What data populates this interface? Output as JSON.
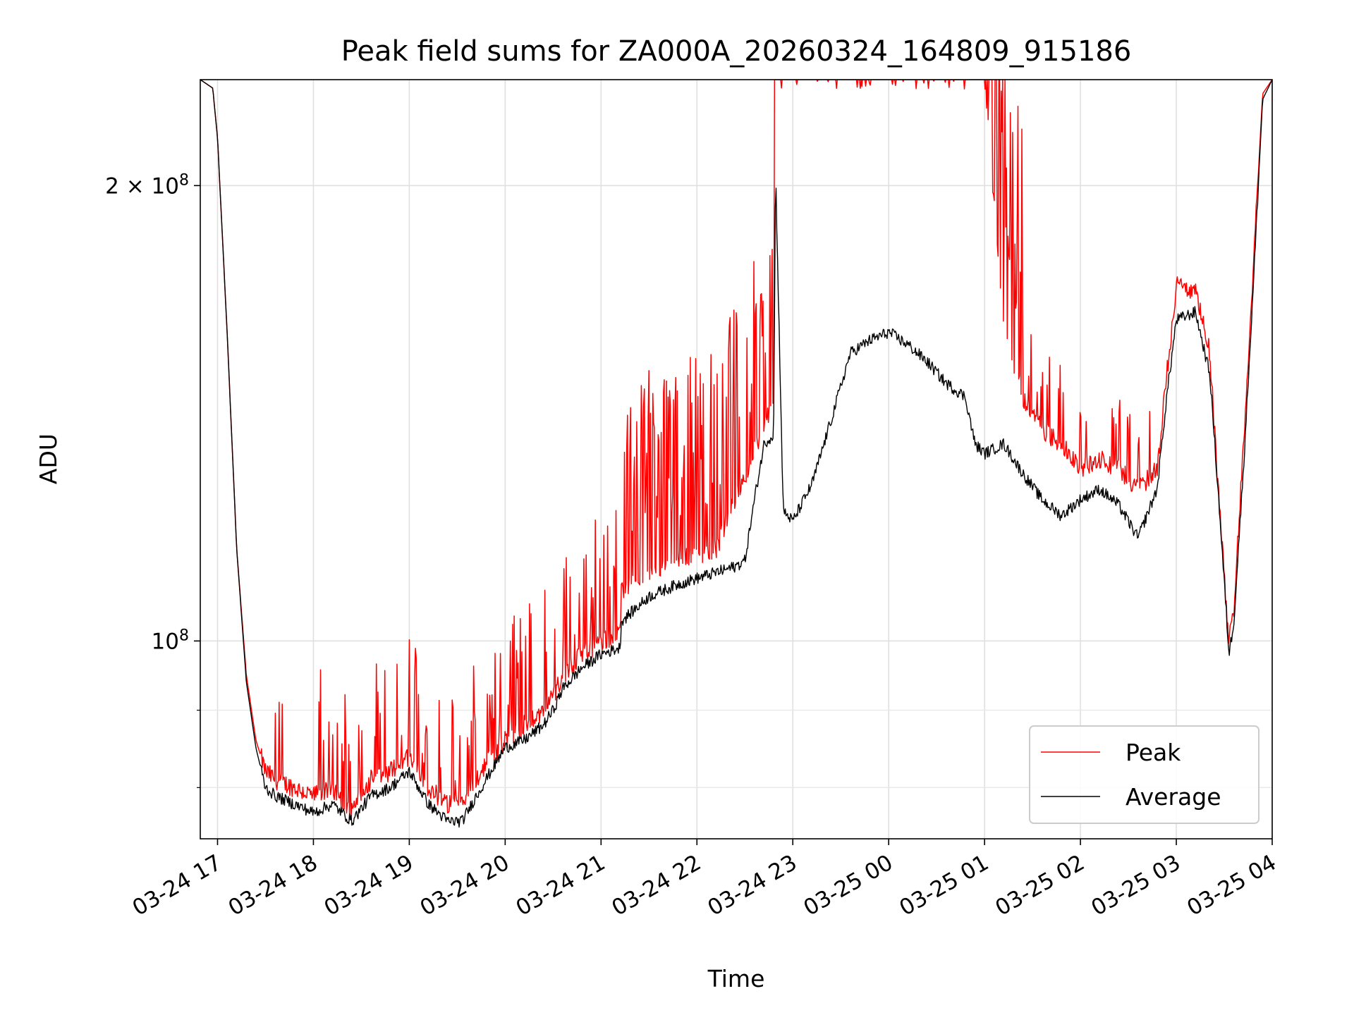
{
  "chart_data": {
    "type": "line",
    "title": "Peak field sums for ZA000A_20260324_164809_915186",
    "xlabel": "Time",
    "ylabel": "ADU",
    "yscale": "log",
    "xlim": [
      -0.18,
      11.0
    ],
    "ylim": [
      74000000,
      235000000
    ],
    "x_ticks": [
      {
        "value": 0,
        "label": "03-24 17"
      },
      {
        "value": 1,
        "label": "03-24 18"
      },
      {
        "value": 2,
        "label": "03-24 19"
      },
      {
        "value": 3,
        "label": "03-24 20"
      },
      {
        "value": 4,
        "label": "03-24 21"
      },
      {
        "value": 5,
        "label": "03-24 22"
      },
      {
        "value": 6,
        "label": "03-24 23"
      },
      {
        "value": 7,
        "label": "03-25 00"
      },
      {
        "value": 8,
        "label": "03-25 01"
      },
      {
        "value": 9,
        "label": "03-25 02"
      },
      {
        "value": 10,
        "label": "03-25 03"
      },
      {
        "value": 11,
        "label": "03-25 04"
      }
    ],
    "y_major_ticks": [
      {
        "value": 100000000,
        "base": "10",
        "exp": "8",
        "coef": ""
      },
      {
        "value": 200000000,
        "base": "10",
        "exp": "8",
        "coef": "2 × "
      }
    ],
    "y_minor_ticks": [
      80000000,
      90000000
    ],
    "grid": true,
    "legend_position": "lower-right",
    "series": [
      {
        "name": "Peak",
        "color": "#ff0000",
        "x": [
          -0.18,
          -0.05,
          0.0,
          0.1,
          0.2,
          0.3,
          0.4,
          0.5,
          0.6,
          0.8,
          1.0,
          1.2,
          1.4,
          1.6,
          1.8,
          2.0,
          2.2,
          2.4,
          2.55,
          2.7,
          2.85,
          3.0,
          3.2,
          3.4,
          3.5,
          3.6,
          3.8,
          4.0,
          4.2,
          4.21,
          4.5,
          4.8,
          5.0,
          5.2,
          5.4,
          5.5,
          5.6,
          5.7,
          5.8,
          5.82,
          5.9,
          6.0,
          6.2,
          6.4,
          6.6,
          6.8,
          7.0,
          7.2,
          7.4,
          7.6,
          7.8,
          7.9,
          8.0,
          8.2,
          8.4,
          8.6,
          8.8,
          9.0,
          9.2,
          9.4,
          9.6,
          9.8,
          9.9,
          10.0,
          10.2,
          10.35,
          10.45,
          10.55,
          10.6,
          10.7,
          10.8,
          10.9,
          11.0
        ],
        "y": [
          235000000,
          232000000,
          215000000,
          160000000,
          115000000,
          95000000,
          86000000,
          82000000,
          81000000,
          80000000,
          79000000,
          80000000,
          77000000,
          81000000,
          82000000,
          84000000,
          80000000,
          78000000,
          78000000,
          81000000,
          84000000,
          86000000,
          88000000,
          90000000,
          92000000,
          95000000,
          98000000,
          100000000,
          101000000,
          108000000,
          111000000,
          113000000,
          114000000,
          115000000,
          124000000,
          128000000,
          134000000,
          138000000,
          145000000,
          235000000,
          235000000,
          235000000,
          235000000,
          235000000,
          235000000,
          235000000,
          235000000,
          235000000,
          235000000,
          235000000,
          235000000,
          235000000,
          235000000,
          160000000,
          145000000,
          138000000,
          135000000,
          130000000,
          132000000,
          130000000,
          126000000,
          130000000,
          150000000,
          172000000,
          170000000,
          155000000,
          122000000,
          100000000,
          105000000,
          135000000,
          175000000,
          230000000,
          235000000
        ]
      },
      {
        "name": "Average",
        "color": "#000000",
        "x": [
          -0.18,
          -0.05,
          0.0,
          0.1,
          0.2,
          0.3,
          0.4,
          0.5,
          0.6,
          0.8,
          1.0,
          1.2,
          1.4,
          1.6,
          1.8,
          2.0,
          2.2,
          2.4,
          2.55,
          2.7,
          2.85,
          3.0,
          3.2,
          3.4,
          3.5,
          3.6,
          3.8,
          4.0,
          4.2,
          4.21,
          4.5,
          4.8,
          5.0,
          5.2,
          5.4,
          5.5,
          5.6,
          5.7,
          5.8,
          5.82,
          5.9,
          6.0,
          6.2,
          6.4,
          6.6,
          6.8,
          7.0,
          7.2,
          7.4,
          7.6,
          7.8,
          7.9,
          8.0,
          8.2,
          8.4,
          8.6,
          8.8,
          9.0,
          9.2,
          9.4,
          9.6,
          9.8,
          9.9,
          10.0,
          10.2,
          10.35,
          10.45,
          10.55,
          10.6,
          10.7,
          10.8,
          10.9,
          11.0
        ],
        "y": [
          235000000,
          232000000,
          215000000,
          160000000,
          115000000,
          94000000,
          85000000,
          80000000,
          79000000,
          78000000,
          77000000,
          78000000,
          76000000,
          79000000,
          80000000,
          82000000,
          78000000,
          76000000,
          76000000,
          79000000,
          82000000,
          85000000,
          86000000,
          88000000,
          90000000,
          93000000,
          96000000,
          98000000,
          99000000,
          103000000,
          107000000,
          109000000,
          110000000,
          111000000,
          112000000,
          113000000,
          124000000,
          135000000,
          137000000,
          205000000,
          122000000,
          120000000,
          127000000,
          140000000,
          155000000,
          158000000,
          160000000,
          157000000,
          153000000,
          148000000,
          145000000,
          135000000,
          133000000,
          135000000,
          129000000,
          124000000,
          121000000,
          124000000,
          126000000,
          123000000,
          117000000,
          126000000,
          145000000,
          163000000,
          165000000,
          150000000,
          122000000,
          98000000,
          103000000,
          130000000,
          170000000,
          228000000,
          235000000
        ]
      }
    ]
  }
}
